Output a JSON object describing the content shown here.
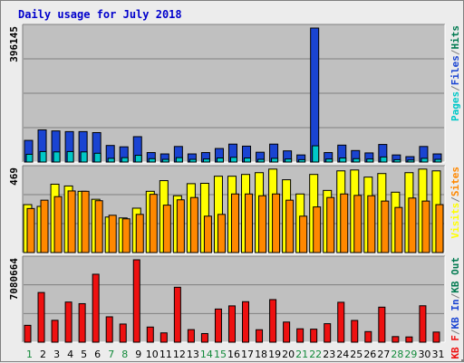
{
  "chart_data": {
    "title": "Daily usage for July 2018",
    "colors": {
      "pages": "#00c8c8",
      "files": "#1a44d2",
      "hits": "#007a50",
      "visits": "#ffff00",
      "sites": "#ff8800",
      "kb": "#ee1010",
      "panel_bg": "#c0c0c0",
      "grid": "#7f7f7f",
      "title": "#0000cc",
      "weekend_day": "#128a3a"
    },
    "panels": [
      {
        "type": "bar",
        "max_label": "396145",
        "ylim": [
          0,
          396145
        ],
        "series": [
          {
            "name": "Pages",
            "color_key": "pages"
          },
          {
            "name": "Files",
            "color_key": "files"
          },
          {
            "name": "Hits",
            "color_key": "hits"
          }
        ],
        "legend_text": [
          "Pages",
          "/",
          "Files",
          "/",
          "Hits"
        ],
        "legend_colors": [
          "pages",
          "grid",
          "files",
          "grid",
          "hits"
        ]
      },
      {
        "type": "bar",
        "max_label": "469",
        "ylim": [
          0,
          469
        ],
        "series": [
          {
            "name": "Visits",
            "color_key": "visits"
          },
          {
            "name": "Sites",
            "color_key": "sites"
          }
        ],
        "legend_text": [
          "Visits",
          "/",
          "Sites"
        ],
        "legend_colors": [
          "visits",
          "grid",
          "sites"
        ]
      },
      {
        "type": "bar",
        "max_label": "7080664",
        "ylim": [
          0,
          7080664
        ],
        "series": [
          {
            "name": "KB F",
            "color_key": "kb"
          }
        ],
        "legend_text": [
          "KB F",
          "/",
          "KB In",
          "/",
          "KB Out"
        ],
        "legend_colors": [
          "kb",
          "grid",
          "files",
          "grid",
          "hits"
        ]
      }
    ],
    "categories": [
      "1",
      "2",
      "3",
      "4",
      "5",
      "6",
      "7",
      "8",
      "9",
      "10",
      "11",
      "12",
      "13",
      "14",
      "15",
      "16",
      "17",
      "18",
      "19",
      "20",
      "21",
      "22",
      "23",
      "24",
      "25",
      "26",
      "27",
      "28",
      "29",
      "30",
      "31"
    ],
    "weekend_days": [
      "1",
      "7",
      "8",
      "14",
      "15",
      "21",
      "22",
      "28",
      "29"
    ],
    "files": [
      64000,
      95000,
      92000,
      90000,
      90000,
      87000,
      49000,
      45000,
      75000,
      28000,
      24000,
      46000,
      24000,
      28000,
      40000,
      53000,
      47000,
      29000,
      53000,
      33000,
      21000,
      396145,
      28000,
      50000,
      34000,
      27000,
      52000,
      21000,
      16000,
      46000,
      24000
    ],
    "pages": [
      23000,
      31000,
      30000,
      31000,
      30000,
      26000,
      11000,
      13000,
      20000,
      10000,
      8000,
      13000,
      8000,
      9000,
      12000,
      14000,
      12000,
      8000,
      11000,
      9000,
      7000,
      48000,
      9000,
      12000,
      10000,
      9000,
      15000,
      7000,
      6000,
      11000,
      8000
    ],
    "visits": [
      270,
      260,
      385,
      375,
      345,
      300,
      200,
      195,
      250,
      345,
      405,
      320,
      388,
      390,
      430,
      430,
      440,
      450,
      470,
      410,
      330,
      440,
      350,
      460,
      465,
      425,
      445,
      340,
      450,
      470,
      460
    ],
    "sites": [
      248,
      295,
      315,
      347,
      345,
      292,
      210,
      190,
      215,
      328,
      267,
      297,
      310,
      205,
      215,
      330,
      330,
      320,
      330,
      295,
      205,
      257,
      310,
      330,
      322,
      320,
      290,
      254,
      307,
      290,
      270
    ],
    "kb_files": [
      1450000,
      4270000,
      1880000,
      3450000,
      3310000,
      5840000,
      2180000,
      1560000,
      7080664,
      1300000,
      800000,
      4720000,
      1080000,
      740000,
      2850000,
      3120000,
      3480000,
      1070000,
      3660000,
      1730000,
      1150000,
      1120000,
      1590000,
      3430000,
      1870000,
      910000,
      3010000,
      480000,
      450000,
      3130000,
      870000
    ]
  }
}
